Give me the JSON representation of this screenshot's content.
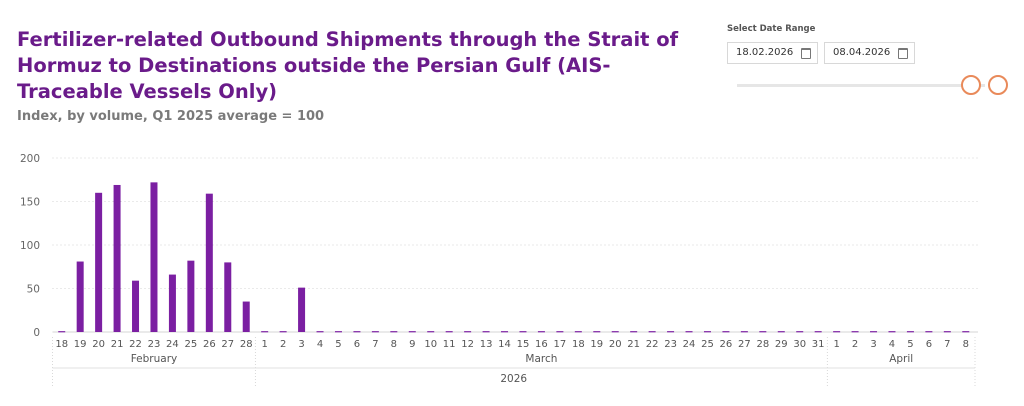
{
  "title": "Fertilizer-related Outbound Shipments through the Strait of Hormuz to Destinations outside the Persian Gulf (AIS-Traceable Vessels Only)",
  "subtitle": "Index, by volume, Q1 2025 average = 100",
  "date_filter": {
    "label": "Select Date Range",
    "start": "18.02.2026",
    "end": "08.04.2026",
    "start_icon": "calendar-icon",
    "end_icon": "calendar-icon"
  },
  "colors": {
    "bar": "#7b1fa2",
    "title": "#6a1b8a",
    "slider": "#e98a5a"
  },
  "chart_data": {
    "type": "bar",
    "title": "",
    "xlabel": "",
    "ylabel": "",
    "ylim": [
      0,
      200
    ],
    "yticks": [
      0,
      50,
      100,
      150,
      200
    ],
    "grid": true,
    "categories": [
      "18",
      "19",
      "20",
      "21",
      "22",
      "23",
      "24",
      "25",
      "26",
      "27",
      "28",
      "1",
      "2",
      "3",
      "4",
      "5",
      "6",
      "7",
      "8",
      "9",
      "10",
      "11",
      "12",
      "13",
      "14",
      "15",
      "16",
      "17",
      "18",
      "19",
      "20",
      "21",
      "22",
      "23",
      "24",
      "25",
      "26",
      "27",
      "28",
      "29",
      "30",
      "31",
      "1",
      "2",
      "3",
      "4",
      "5",
      "6",
      "7",
      "8"
    ],
    "values": [
      1,
      81,
      160,
      169,
      59,
      172,
      66,
      82,
      159,
      80,
      35,
      1,
      1,
      51,
      1,
      1,
      1,
      1,
      1,
      1,
      1,
      1,
      1,
      1,
      1,
      1,
      1,
      1,
      1,
      1,
      1,
      1,
      1,
      1,
      1,
      1,
      1,
      1,
      1,
      1,
      1,
      1,
      1,
      1,
      1,
      1,
      1,
      1,
      1,
      1
    ],
    "month_groups": [
      {
        "label": "February",
        "count": 11
      },
      {
        "label": "March",
        "count": 31
      },
      {
        "label": "April",
        "count": 8
      }
    ],
    "year_label": "2026"
  }
}
